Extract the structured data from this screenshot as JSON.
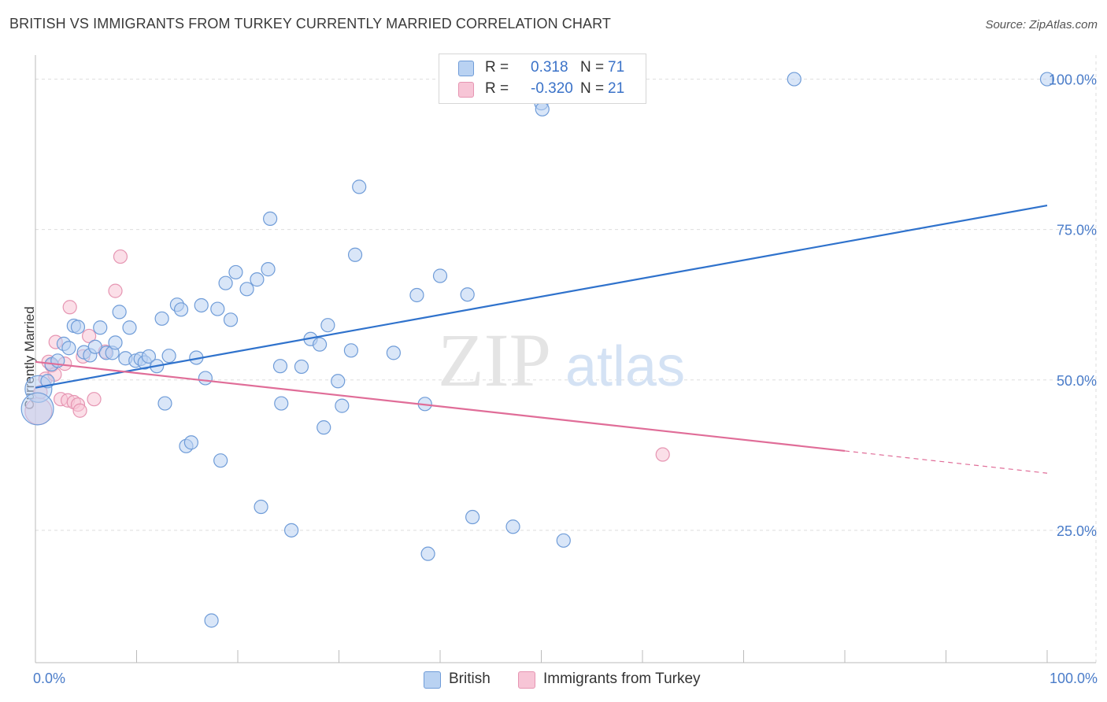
{
  "title": "BRITISH VS IMMIGRANTS FROM TURKEY CURRENTLY MARRIED CORRELATION CHART",
  "source": "Source: ZipAtlas.com",
  "watermark": {
    "zip": "ZIP",
    "atlas": "atlas"
  },
  "colors": {
    "british_fill": "#b9d2f2",
    "british_stroke": "#6f9cd8",
    "british_line": "#2f72cc",
    "turkey_fill": "#f7c5d6",
    "turkey_stroke": "#e695b2",
    "turkey_line": "#e06d98",
    "value_text": "#3a72c8",
    "grid": "#dddddd"
  },
  "legend_top": {
    "rows": [
      {
        "series": "British",
        "r_label": "R =",
        "r_value": "0.318",
        "n_label": "N =",
        "n_value": "71"
      },
      {
        "series": "Immigrants from Turkey",
        "r_label": "R =",
        "r_value": "-0.320",
        "n_label": "N =",
        "n_value": "21"
      }
    ]
  },
  "legend_bottom": {
    "items": [
      "British",
      "Immigrants from Turkey"
    ]
  },
  "chart_data": {
    "type": "scatter",
    "title": "BRITISH VS IMMIGRANTS FROM TURKEY CURRENTLY MARRIED CORRELATION CHART",
    "xlabel": "",
    "ylabel": "Currently Married",
    "xlim": [
      0,
      100
    ],
    "ylim": [
      3,
      104
    ],
    "x_tick_labels": {
      "min": "0.0%",
      "max": "100.0%"
    },
    "y_ticks": [
      {
        "value": 25,
        "label": "25.0%"
      },
      {
        "value": 50,
        "label": "50.0%"
      },
      {
        "value": 75,
        "label": "75.0%"
      },
      {
        "value": 100,
        "label": "100.0%"
      }
    ],
    "x_minor_ticks": [
      0,
      10,
      20,
      30,
      40,
      50,
      60,
      70,
      80,
      90,
      100
    ],
    "grid": true,
    "series": [
      {
        "name": "British",
        "r": 0.318,
        "n": 71,
        "trend": {
          "x0": 0,
          "y0": 48.7,
          "x1": 100,
          "y1": 79.0
        },
        "points": [
          [
            0.3,
            48.5,
            2
          ],
          [
            0.2,
            45.2,
            2.4
          ],
          [
            1.2,
            49.8,
            1
          ],
          [
            1.6,
            52.6,
            1
          ],
          [
            2.2,
            53.2,
            1
          ],
          [
            2.8,
            56.0,
            1
          ],
          [
            3.3,
            55.3,
            1
          ],
          [
            3.8,
            59.0,
            1
          ],
          [
            4.2,
            58.8,
            1
          ],
          [
            4.8,
            54.6,
            1
          ],
          [
            5.4,
            54.1,
            1
          ],
          [
            5.9,
            55.5,
            1
          ],
          [
            6.4,
            58.7,
            1
          ],
          [
            7.0,
            54.5,
            1
          ],
          [
            7.6,
            54.5,
            1
          ],
          [
            7.9,
            56.2,
            1
          ],
          [
            8.3,
            61.3,
            1
          ],
          [
            8.9,
            53.6,
            1
          ],
          [
            9.3,
            58.7,
            1
          ],
          [
            9.9,
            53.2,
            1
          ],
          [
            10.4,
            53.5,
            1
          ],
          [
            10.8,
            52.9,
            1
          ],
          [
            11.2,
            53.9,
            1
          ],
          [
            12.0,
            52.3,
            1
          ],
          [
            12.5,
            60.2,
            1
          ],
          [
            12.8,
            46.1,
            1
          ],
          [
            13.2,
            54.0,
            1
          ],
          [
            14.0,
            62.5,
            1
          ],
          [
            14.4,
            61.7,
            1
          ],
          [
            14.9,
            39.0,
            1
          ],
          [
            15.4,
            39.6,
            1
          ],
          [
            15.9,
            53.7,
            1
          ],
          [
            16.4,
            62.4,
            1
          ],
          [
            16.8,
            50.3,
            1
          ],
          [
            17.4,
            10.0,
            1
          ],
          [
            18.0,
            61.8,
            1
          ],
          [
            18.3,
            36.6,
            1
          ],
          [
            18.8,
            66.1,
            1
          ],
          [
            19.3,
            60.0,
            1
          ],
          [
            19.8,
            67.9,
            1
          ],
          [
            20.9,
            65.1,
            1
          ],
          [
            21.9,
            66.7,
            1
          ],
          [
            22.3,
            28.9,
            1
          ],
          [
            23.0,
            68.4,
            1
          ],
          [
            23.2,
            76.8,
            1
          ],
          [
            24.2,
            52.3,
            1
          ],
          [
            24.3,
            46.1,
            1
          ],
          [
            25.3,
            25.0,
            1
          ],
          [
            26.3,
            52.2,
            1
          ],
          [
            27.2,
            56.8,
            1
          ],
          [
            28.1,
            55.9,
            1
          ],
          [
            28.5,
            42.1,
            1
          ],
          [
            28.9,
            59.1,
            1
          ],
          [
            29.9,
            49.8,
            1
          ],
          [
            30.3,
            45.7,
            1
          ],
          [
            31.2,
            54.9,
            1
          ],
          [
            31.6,
            70.8,
            1
          ],
          [
            32.0,
            82.1,
            1
          ],
          [
            35.4,
            54.5,
            1
          ],
          [
            37.7,
            64.1,
            1
          ],
          [
            38.5,
            46.0,
            1
          ],
          [
            38.8,
            21.1,
            1
          ],
          [
            40.0,
            67.3,
            1
          ],
          [
            42.7,
            64.2,
            1
          ],
          [
            43.2,
            27.2,
            1
          ],
          [
            47.2,
            25.6,
            1
          ],
          [
            50.0,
            96.0,
            1
          ],
          [
            50.1,
            95.0,
            1
          ],
          [
            52.2,
            23.3,
            1
          ],
          [
            75.0,
            100.0,
            1
          ],
          [
            100.0,
            100.0,
            1
          ]
        ]
      },
      {
        "name": "Immigrants from Turkey",
        "r": -0.32,
        "n": 21,
        "trend": {
          "x0": 0,
          "y0": 53.0,
          "x1": 80,
          "y1": 38.2,
          "dash_to_x": 100,
          "dash_to_y": 34.5
        },
        "points": [
          [
            0.3,
            44.8,
            2
          ],
          [
            0.5,
            48.0,
            1
          ],
          [
            1.0,
            50.2,
            1
          ],
          [
            1.3,
            53.0,
            1
          ],
          [
            1.6,
            52.4,
            1
          ],
          [
            1.9,
            50.9,
            1
          ],
          [
            2.0,
            56.3,
            1
          ],
          [
            2.5,
            46.8,
            1
          ],
          [
            2.9,
            52.7,
            1
          ],
          [
            3.2,
            46.6,
            1
          ],
          [
            3.4,
            62.1,
            1
          ],
          [
            3.8,
            46.3,
            1
          ],
          [
            4.2,
            45.9,
            1
          ],
          [
            4.4,
            44.9,
            1
          ],
          [
            4.7,
            53.9,
            1
          ],
          [
            5.3,
            57.3,
            1
          ],
          [
            5.8,
            46.8,
            1
          ],
          [
            6.9,
            54.7,
            1
          ],
          [
            7.9,
            64.8,
            1
          ],
          [
            8.4,
            70.5,
            1
          ],
          [
            62.0,
            37.6,
            1
          ]
        ]
      }
    ]
  }
}
